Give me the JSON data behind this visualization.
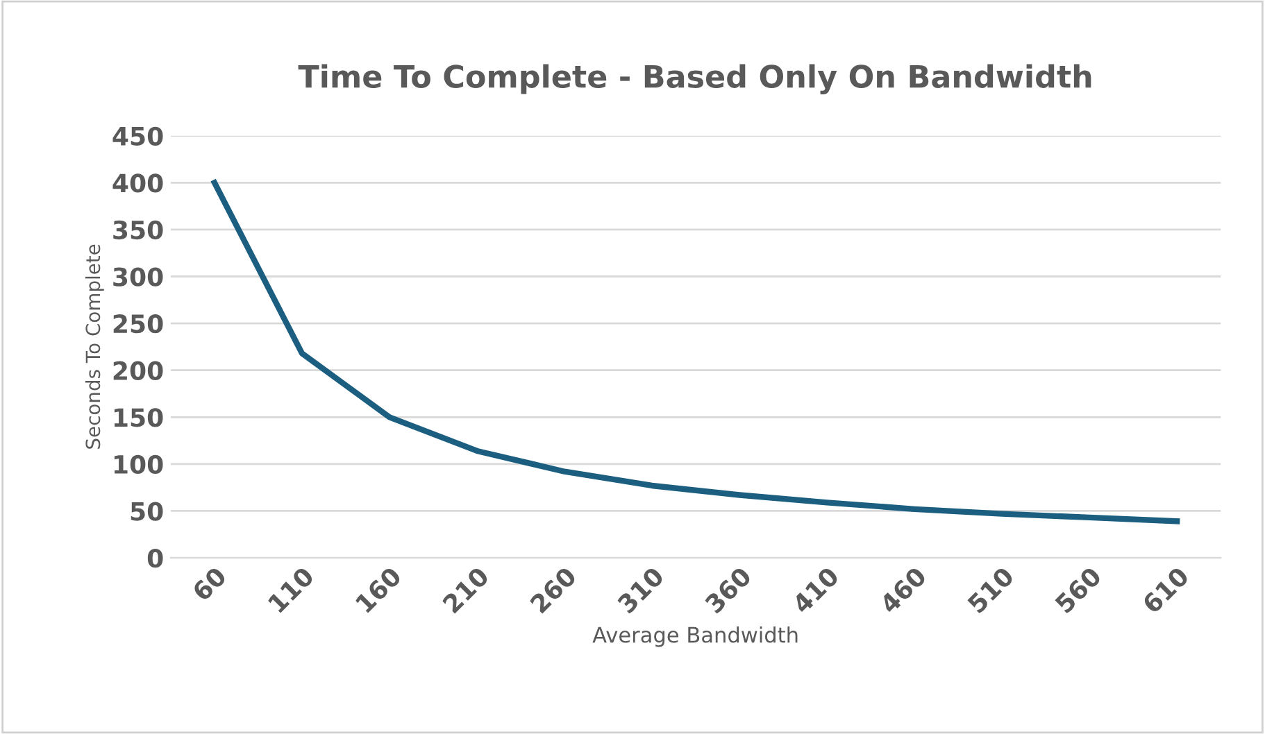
{
  "chart_data": {
    "type": "line",
    "title": "Time To Complete - Based Only On Bandwidth",
    "xlabel": "Average Bandwidth",
    "ylabel": "Seconds To Complete",
    "categories": [
      "60",
      "110",
      "160",
      "210",
      "260",
      "310",
      "360",
      "410",
      "460",
      "510",
      "560",
      "610"
    ],
    "series": [
      {
        "color": "#1b5e80",
        "values": [
          400,
          218,
          150,
          114,
          92,
          77,
          67,
          59,
          52,
          47,
          43,
          39
        ]
      }
    ],
    "ylim": [
      0,
      450
    ],
    "yticks": [
      0,
      50,
      100,
      150,
      200,
      250,
      300,
      350,
      400,
      450
    ],
    "grid": "y",
    "legend": false,
    "marker": "none",
    "line_style": "solid"
  }
}
